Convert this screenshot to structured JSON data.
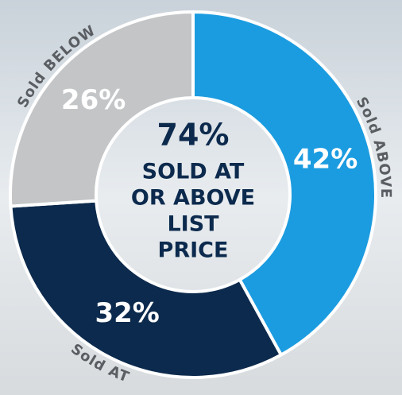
{
  "chart_data": {
    "type": "donut",
    "categories": [
      "Sold ABOVE",
      "Sold AT",
      "Sold BELOW"
    ],
    "values": [
      42,
      32,
      26
    ],
    "value_labels": [
      "42%",
      "32%",
      "26%"
    ],
    "colors": [
      "#1c9ce0",
      "#0c2a4d",
      "#c3c5c7"
    ],
    "center_text": [
      "74%",
      "SOLD AT",
      "OR ABOVE",
      "LIST",
      "PRICE"
    ]
  }
}
